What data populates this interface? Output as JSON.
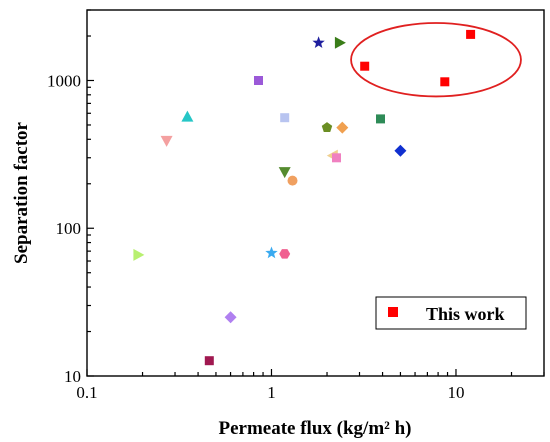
{
  "chart_data": {
    "type": "scatter",
    "xlabel": "Permeate flux (kg/m² h)",
    "ylabel": "Separation factor",
    "xscale": "log",
    "yscale": "log",
    "xlim": [
      0.1,
      30
    ],
    "ylim": [
      10,
      3000
    ],
    "x_ticks": [
      {
        "value": 0.1,
        "label": "0.1"
      },
      {
        "value": 1,
        "label": "1"
      },
      {
        "value": 10,
        "label": "10"
      }
    ],
    "y_ticks": [
      {
        "value": 10,
        "label": "10"
      },
      {
        "value": 100,
        "label": "100"
      },
      {
        "value": 1000,
        "label": "1000"
      }
    ],
    "grid": false,
    "legend": {
      "position": "bottom-right",
      "entries": [
        {
          "label": "This work",
          "color": "#ff0000",
          "marker": "square"
        }
      ]
    },
    "annotation": {
      "type": "ellipse",
      "color": "#e02020",
      "center": [
        7.9,
        1400
      ],
      "x_range": [
        2.7,
        22.5
      ],
      "y_range": [
        780,
        2450
      ]
    },
    "series": [
      {
        "name": "This work",
        "color": "#ff0000",
        "marker": "square",
        "points": [
          [
            12,
            2050
          ],
          [
            3.2,
            1250
          ],
          [
            8.7,
            980
          ]
        ]
      },
      {
        "color": "#1f1f9e",
        "marker": "star",
        "points": [
          [
            1.8,
            1800
          ]
        ]
      },
      {
        "color": "#3a7d19",
        "marker": "triangle-right",
        "points": [
          [
            2.35,
            1800
          ]
        ]
      },
      {
        "color": "#9b59d8",
        "marker": "square",
        "points": [
          [
            0.85,
            1000
          ]
        ]
      },
      {
        "color": "#26c6c6",
        "marker": "triangle-up",
        "points": [
          [
            0.35,
            570
          ]
        ]
      },
      {
        "color": "#b8c4f0",
        "marker": "square",
        "points": [
          [
            1.18,
            560
          ]
        ]
      },
      {
        "color": "#2e8b57",
        "marker": "square",
        "points": [
          [
            3.9,
            550
          ]
        ]
      },
      {
        "color": "#f4a0a0",
        "marker": "triangle-down",
        "points": [
          [
            0.27,
            390
          ]
        ]
      },
      {
        "color": "#6b8e23",
        "marker": "pentagon",
        "points": [
          [
            2.0,
            480
          ]
        ]
      },
      {
        "color": "#f0a050",
        "marker": "diamond",
        "points": [
          [
            2.42,
            480
          ]
        ]
      },
      {
        "color": "#1030d0",
        "marker": "diamond",
        "points": [
          [
            5.0,
            335
          ]
        ]
      },
      {
        "color": "#f0d090",
        "marker": "triangle-left",
        "points": [
          [
            2.15,
            310
          ]
        ]
      },
      {
        "color": "#f080c0",
        "marker": "square",
        "points": [
          [
            2.25,
            300
          ]
        ]
      },
      {
        "color": "#558b2f",
        "marker": "triangle-down",
        "points": [
          [
            1.18,
            240
          ]
        ]
      },
      {
        "color": "#f0a060",
        "marker": "circle",
        "points": [
          [
            1.3,
            210
          ]
        ]
      },
      {
        "color": "#b8f070",
        "marker": "triangle-right",
        "points": [
          [
            0.19,
            66
          ]
        ]
      },
      {
        "color": "#3aaaf0",
        "marker": "star",
        "points": [
          [
            1.0,
            68
          ]
        ]
      },
      {
        "color": "#f06090",
        "marker": "hexagon",
        "points": [
          [
            1.18,
            67
          ]
        ]
      },
      {
        "color": "#b080f0",
        "marker": "diamond",
        "points": [
          [
            0.6,
            25
          ]
        ]
      },
      {
        "color": "#a01850",
        "marker": "square",
        "points": [
          [
            0.46,
            12.7
          ]
        ]
      }
    ]
  }
}
